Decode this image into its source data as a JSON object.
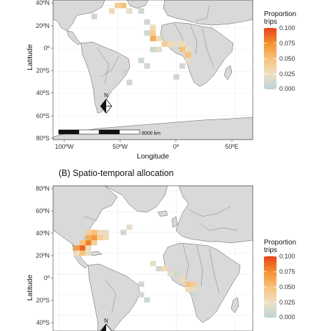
{
  "panel_a": {
    "y_ticks": [
      "40ºN",
      "20ºN",
      "0º",
      "20ºS",
      "40ºS",
      "60ºS",
      "80ºS"
    ],
    "x_ticks": [
      "100ºW",
      "50ºW",
      "0º",
      "50ºE"
    ],
    "y_label": "Latitude",
    "x_label": "Longitude",
    "scale_label": "8000 km",
    "north_label": "N",
    "legend": {
      "title_line1": "Proportion",
      "title_line2": "trips",
      "ticks": [
        "0.100",
        "0.075",
        "0.050",
        "0.025",
        "0.000"
      ]
    }
  },
  "panel_b": {
    "title": "(B) Spatio-temporal allocation",
    "y_ticks": [
      "80ºN",
      "60ºN",
      "40ºN",
      "20ºN",
      "0º",
      "20ºS",
      "40ºS"
    ],
    "y_label": "Latitude",
    "north_label": "N",
    "legend": {
      "title_line1": "Proportion",
      "title_line2": "trips",
      "ticks": [
        "0.100",
        "0.075",
        "0.050",
        "0.025",
        "0.000"
      ]
    }
  },
  "colors": {
    "land": "#d9d9d9",
    "ocean": "#ffffff",
    "border": "#555555",
    "grid": "#ececec",
    "scale_low": "#b8d3d6",
    "scale_mid1": "#f7d8a8",
    "scale_mid2": "#f5a640",
    "scale_high": "#e8401c"
  },
  "chart_data": {
    "type": "heatmap",
    "panels": [
      {
        "panel": "A",
        "x_axis": "Longitude (degrees)",
        "y_axis": "Latitude (degrees)",
        "xlim": [
          -105,
          65
        ],
        "ylim": [
          -82,
          45
        ],
        "color_range": [
          0,
          0.1
        ],
        "cells": [
          {
            "lon": -50,
            "lat": 40,
            "value": 0.04
          },
          {
            "lon": -45,
            "lat": 40,
            "value": 0.05
          },
          {
            "lon": -55,
            "lat": 35,
            "value": 0.03
          },
          {
            "lon": -40,
            "lat": 35,
            "value": 0.02
          },
          {
            "lon": -30,
            "lat": 35,
            "value": 0.01
          },
          {
            "lon": -70,
            "lat": 30,
            "value": 0.01
          },
          {
            "lon": -25,
            "lat": 25,
            "value": 0.01
          },
          {
            "lon": -20,
            "lat": 20,
            "value": 0.03
          },
          {
            "lon": -25,
            "lat": 15,
            "value": 0.01
          },
          {
            "lon": -20,
            "lat": 15,
            "value": 0.04
          },
          {
            "lon": -20,
            "lat": 10,
            "value": 0.06
          },
          {
            "lon": -15,
            "lat": 10,
            "value": 0.03
          },
          {
            "lon": -10,
            "lat": 5,
            "value": 0.04
          },
          {
            "lon": -5,
            "lat": 5,
            "value": 0.03
          },
          {
            "lon": 0,
            "lat": 5,
            "value": 0.02
          },
          {
            "lon": 5,
            "lat": 5,
            "value": 0.03
          },
          {
            "lon": 5,
            "lat": 0,
            "value": 0.05
          },
          {
            "lon": 10,
            "lat": 0,
            "value": 0.02
          },
          {
            "lon": -20,
            "lat": 0,
            "value": 0.01
          },
          {
            "lon": -15,
            "lat": 0,
            "value": 0.02
          },
          {
            "lon": 10,
            "lat": -5,
            "value": 0.05
          },
          {
            "lon": 10,
            "lat": -10,
            "value": 0.02
          },
          {
            "lon": -30,
            "lat": -10,
            "value": 0.01
          },
          {
            "lon": -25,
            "lat": -15,
            "value": 0.01
          },
          {
            "lon": 5,
            "lat": -15,
            "value": 0.01
          },
          {
            "lon": -45,
            "lat": -20,
            "value": 0.01
          },
          {
            "lon": 0,
            "lat": -25,
            "value": 0.01
          },
          {
            "lon": -40,
            "lat": -30,
            "value": 0.01
          }
        ]
      },
      {
        "panel": "B",
        "title": "(B) Spatio-temporal allocation",
        "x_axis": "Longitude (degrees)",
        "y_axis": "Latitude (degrees)",
        "xlim": [
          -105,
          65
        ],
        "ylim": [
          -55,
          85
        ],
        "color_range": [
          0,
          0.1
        ],
        "cells": [
          {
            "lon": -75,
            "lat": 40,
            "value": 0.04
          },
          {
            "lon": -70,
            "lat": 40,
            "value": 0.05
          },
          {
            "lon": -65,
            "lat": 40,
            "value": 0.03
          },
          {
            "lon": -60,
            "lat": 40,
            "value": 0.02
          },
          {
            "lon": -75,
            "lat": 35,
            "value": 0.06
          },
          {
            "lon": -70,
            "lat": 35,
            "value": 0.07
          },
          {
            "lon": -65,
            "lat": 35,
            "value": 0.04
          },
          {
            "lon": -60,
            "lat": 35,
            "value": 0.03
          },
          {
            "lon": -80,
            "lat": 30,
            "value": 0.05
          },
          {
            "lon": -75,
            "lat": 30,
            "value": 0.08
          },
          {
            "lon": -70,
            "lat": 30,
            "value": 0.04
          },
          {
            "lon": -85,
            "lat": 25,
            "value": 0.07
          },
          {
            "lon": -80,
            "lat": 25,
            "value": 0.09
          },
          {
            "lon": -75,
            "lat": 25,
            "value": 0.03
          },
          {
            "lon": -85,
            "lat": 20,
            "value": 0.03
          },
          {
            "lon": -80,
            "lat": 20,
            "value": 0.05
          },
          {
            "lon": -75,
            "lat": 20,
            "value": 0.02
          },
          {
            "lon": -40,
            "lat": 45,
            "value": 0.02
          },
          {
            "lon": -45,
            "lat": 40,
            "value": 0.01
          },
          {
            "lon": -20,
            "lat": 10,
            "value": 0.02
          },
          {
            "lon": -15,
            "lat": 5,
            "value": 0.01
          },
          {
            "lon": -10,
            "lat": 5,
            "value": 0.03
          },
          {
            "lon": -5,
            "lat": 0,
            "value": 0.02
          },
          {
            "lon": 0,
            "lat": 0,
            "value": 0.01
          },
          {
            "lon": 5,
            "lat": -5,
            "value": 0.03
          },
          {
            "lon": 10,
            "lat": -10,
            "value": 0.05
          },
          {
            "lon": 15,
            "lat": -10,
            "value": 0.04
          },
          {
            "lon": 10,
            "lat": -15,
            "value": 0.03
          },
          {
            "lon": 15,
            "lat": -15,
            "value": 0.02
          },
          {
            "lon": 15,
            "lat": -20,
            "value": 0.01
          },
          {
            "lon": -30,
            "lat": -10,
            "value": 0.01
          },
          {
            "lon": -30,
            "lat": -20,
            "value": 0.01
          },
          {
            "lon": -25,
            "lat": -25,
            "value": 0.01
          }
        ]
      }
    ]
  }
}
